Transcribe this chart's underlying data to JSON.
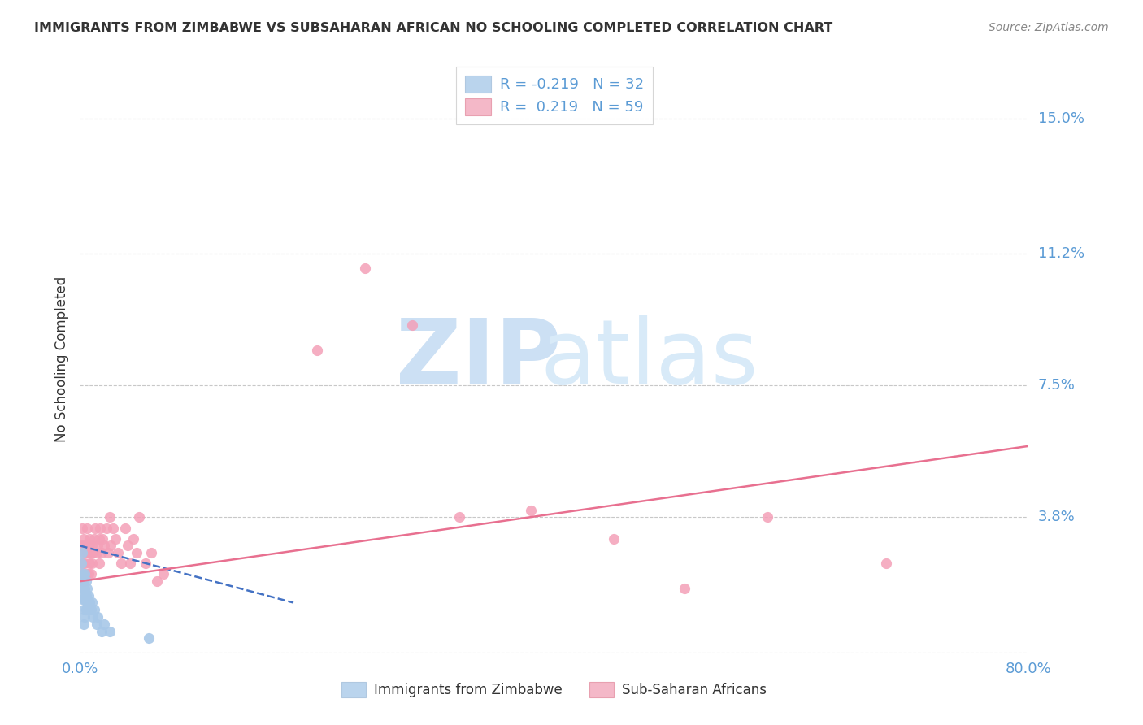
{
  "title": "IMMIGRANTS FROM ZIMBABWE VS SUBSAHARAN AFRICAN NO SCHOOLING COMPLETED CORRELATION CHART",
  "source": "Source: ZipAtlas.com",
  "ylabel": "No Schooling Completed",
  "legend1_label": "Immigrants from Zimbabwe",
  "legend2_label": "Sub-Saharan Africans",
  "R1": "-0.219",
  "N1": "32",
  "R2": "0.219",
  "N2": "59",
  "ytick_vals": [
    0.0,
    0.038,
    0.075,
    0.112,
    0.15
  ],
  "ytick_labels": [
    "",
    "3.8%",
    "7.5%",
    "11.2%",
    "15.0%"
  ],
  "xlim": [
    0.0,
    0.8
  ],
  "ylim": [
    0.0,
    0.165
  ],
  "background_color": "#ffffff",
  "title_color": "#333333",
  "axis_color": "#5b9bd5",
  "grid_color": "#c8c8c8",
  "blue_dot_color": "#a8c8e8",
  "pink_dot_color": "#f4a0b8",
  "blue_line_color": "#4472c4",
  "pink_line_color": "#e87090",
  "blue_legend_color": "#bad4ed",
  "pink_legend_color": "#f4b8c8",
  "watermark_zip_color": "#cce0f4",
  "watermark_atlas_color": "#d8eaf8",
  "zim_x": [
    0.001,
    0.001,
    0.002,
    0.002,
    0.002,
    0.002,
    0.003,
    0.003,
    0.003,
    0.003,
    0.004,
    0.004,
    0.004,
    0.004,
    0.005,
    0.005,
    0.005,
    0.006,
    0.006,
    0.007,
    0.007,
    0.008,
    0.009,
    0.01,
    0.011,
    0.012,
    0.014,
    0.015,
    0.018,
    0.02,
    0.025,
    0.058
  ],
  "zim_y": [
    0.025,
    0.02,
    0.028,
    0.022,
    0.018,
    0.015,
    0.02,
    0.016,
    0.012,
    0.008,
    0.022,
    0.018,
    0.015,
    0.01,
    0.02,
    0.016,
    0.012,
    0.018,
    0.014,
    0.016,
    0.012,
    0.014,
    0.012,
    0.014,
    0.01,
    0.012,
    0.008,
    0.01,
    0.006,
    0.008,
    0.006,
    0.004
  ],
  "sub_x": [
    0.001,
    0.001,
    0.002,
    0.002,
    0.003,
    0.003,
    0.003,
    0.004,
    0.004,
    0.005,
    0.005,
    0.006,
    0.006,
    0.007,
    0.007,
    0.008,
    0.008,
    0.009,
    0.009,
    0.01,
    0.01,
    0.011,
    0.012,
    0.013,
    0.014,
    0.015,
    0.016,
    0.016,
    0.017,
    0.018,
    0.019,
    0.02,
    0.022,
    0.024,
    0.025,
    0.026,
    0.028,
    0.03,
    0.032,
    0.035,
    0.038,
    0.04,
    0.042,
    0.045,
    0.048,
    0.05,
    0.055,
    0.06,
    0.065,
    0.07,
    0.2,
    0.24,
    0.28,
    0.32,
    0.38,
    0.45,
    0.51,
    0.58,
    0.68
  ],
  "sub_y": [
    0.03,
    0.022,
    0.035,
    0.025,
    0.032,
    0.028,
    0.02,
    0.03,
    0.025,
    0.028,
    0.022,
    0.035,
    0.028,
    0.03,
    0.022,
    0.032,
    0.025,
    0.028,
    0.022,
    0.03,
    0.025,
    0.028,
    0.032,
    0.035,
    0.028,
    0.03,
    0.032,
    0.025,
    0.035,
    0.028,
    0.032,
    0.03,
    0.035,
    0.028,
    0.038,
    0.03,
    0.035,
    0.032,
    0.028,
    0.025,
    0.035,
    0.03,
    0.025,
    0.032,
    0.028,
    0.038,
    0.025,
    0.028,
    0.02,
    0.022,
    0.085,
    0.108,
    0.092,
    0.038,
    0.04,
    0.032,
    0.018,
    0.038,
    0.025
  ],
  "zim_line_x": [
    0.0,
    0.18
  ],
  "zim_line_y": [
    0.03,
    0.014
  ],
  "sub_line_x": [
    0.0,
    0.8
  ],
  "sub_line_y": [
    0.02,
    0.058
  ]
}
